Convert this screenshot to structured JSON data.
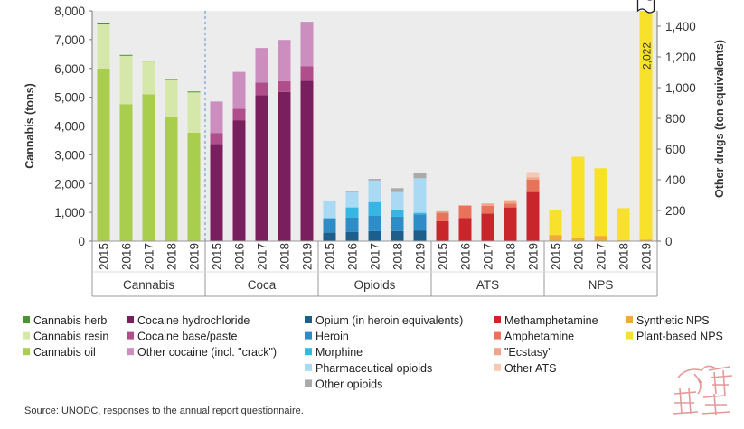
{
  "chart_data": {
    "type": "bar",
    "stacked": true,
    "left_axis_label": "Cannabis (tons)",
    "right_axis_label": "Other drugs (ton equivalents)",
    "left_ylim": [
      0,
      8000
    ],
    "left_ticks": [
      "0",
      "1,000",
      "2,000",
      "3,000",
      "4,000",
      "5,000",
      "6,000",
      "7,000",
      "8,000"
    ],
    "right_ylim": [
      0,
      1500
    ],
    "right_ticks": [
      "0",
      "200",
      "400",
      "600",
      "800",
      "1,000",
      "1,200",
      "1,400"
    ],
    "years": [
      "2015",
      "2016",
      "2017",
      "2018",
      "2019"
    ],
    "truncated_bar_label": "2,022",
    "source": "Source: UNODC, responses to the annual report questionnaire.",
    "groups": [
      {
        "name": "Cannabis",
        "axis": "left",
        "series": [
          {
            "name": "Cannabis oil",
            "color": "#a9cd4c",
            "values": [
              6000,
              4760,
              5100,
              4300,
              3770
            ]
          },
          {
            "name": "Cannabis resin",
            "color": "#d6e7aa",
            "values": [
              1530,
              1680,
              1140,
              1300,
              1400
            ]
          },
          {
            "name": "Cannabis herb",
            "color": "#4b9233",
            "values": [
              40,
              30,
              30,
              30,
              30
            ]
          }
        ]
      },
      {
        "name": "Coca",
        "axis": "left",
        "series": [
          {
            "name": "Cocaine hydrochloride",
            "color": "#7a1f5e",
            "values": [
              3380,
              4200,
              5070,
              5180,
              5570
            ]
          },
          {
            "name": "Cocaine base/paste",
            "color": "#b04e8c",
            "values": [
              380,
              400,
              440,
              380,
              500
            ]
          },
          {
            "name": "Other cocaine (incl. \"crack\")",
            "color": "#cc8ebf",
            "values": [
              1090,
              1280,
              1200,
              1430,
              1550
            ]
          }
        ]
      },
      {
        "name": "Opioids",
        "axis": "right",
        "series": [
          {
            "name": "Opium (in heroin equivalents)",
            "color": "#1d5f8a",
            "values": [
              55,
              60,
              65,
              65,
              70
            ]
          },
          {
            "name": "Heroin",
            "color": "#2e8cc7",
            "values": [
              90,
              95,
              100,
              95,
              105
            ]
          },
          {
            "name": "Morphine",
            "color": "#35b6e3",
            "values": [
              5,
              65,
              90,
              45,
              10
            ]
          },
          {
            "name": "Pharmaceutical opioids",
            "color": "#a9d9f3",
            "values": [
              115,
              100,
              140,
              115,
              225
            ]
          },
          {
            "name": "Other opioids",
            "color": "#aaaaaa",
            "values": [
              0,
              5,
              10,
              25,
              35
            ]
          }
        ]
      },
      {
        "name": "ATS",
        "axis": "right",
        "series": [
          {
            "name": "Methamphetamine",
            "color": "#c9262c",
            "values": [
              130,
              150,
              180,
              220,
              320
            ]
          },
          {
            "name": "Amphetamine",
            "color": "#e8735a",
            "values": [
              55,
              80,
              50,
              25,
              80
            ]
          },
          {
            "name": "\"Ecstasy\"",
            "color": "#f0a48a",
            "values": [
              10,
              5,
              15,
              20,
              15
            ]
          },
          {
            "name": "Other ATS",
            "color": "#f6c9b6",
            "values": [
              0,
              0,
              0,
              5,
              35
            ]
          }
        ]
      },
      {
        "name": "NPS",
        "axis": "right",
        "series": [
          {
            "name": "Synthetic NPS",
            "color": "#f2a93b",
            "values": [
              40,
              20,
              35,
              5,
              10
            ]
          },
          {
            "name": "Plant-based NPS",
            "color": "#f7e12b",
            "values": [
              165,
              530,
              440,
              210,
              2012
            ]
          }
        ]
      }
    ]
  },
  "legend": {
    "columns": [
      [
        {
          "label": "Cannabis herb",
          "color": "#4b9233"
        },
        {
          "label": "Cannabis resin",
          "color": "#d6e7aa"
        },
        {
          "label": "Cannabis oil",
          "color": "#a9cd4c"
        }
      ],
      [
        {
          "label": "Cocaine hydrochloride",
          "color": "#7a1f5e"
        },
        {
          "label": "Cocaine base/paste",
          "color": "#b04e8c"
        },
        {
          "label": "Other cocaine (incl. \"crack\")",
          "color": "#cc8ebf"
        }
      ],
      [
        {
          "label": "Opium (in heroin equivalents)",
          "color": "#1d5f8a"
        },
        {
          "label": "Heroin",
          "color": "#2e8cc7"
        },
        {
          "label": "Morphine",
          "color": "#35b6e3"
        },
        {
          "label": "Pharmaceutical opioids",
          "color": "#a9d9f3"
        },
        {
          "label": "Other opioids",
          "color": "#aaaaaa"
        }
      ],
      [
        {
          "label": "Methamphetamine",
          "color": "#c9262c"
        },
        {
          "label": "Amphetamine",
          "color": "#e8735a"
        },
        {
          "label": "\"Ecstasy\"",
          "color": "#f0a48a"
        },
        {
          "label": "Other ATS",
          "color": "#f6c9b6"
        }
      ],
      [
        {
          "label": "Synthetic NPS",
          "color": "#f2a93b"
        },
        {
          "label": "Plant-based NPS",
          "color": "#f7e12b"
        }
      ]
    ]
  }
}
